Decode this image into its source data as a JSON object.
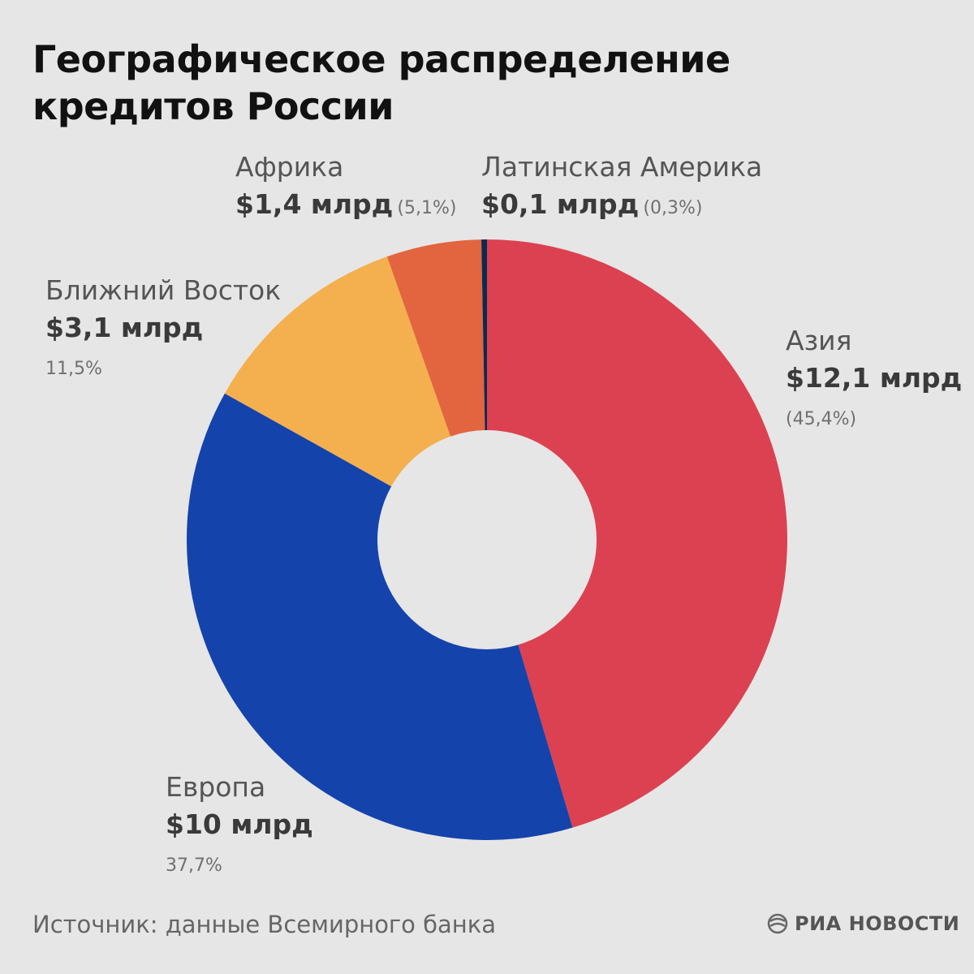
{
  "title": "Географическое распределение кредитов России",
  "source": "Источник: данные Всемирного банка",
  "logo_text": "РИА НОВОСТИ",
  "chart_data": {
    "type": "pie",
    "variant": "donut",
    "title": "Географическое распределение кредитов России",
    "unit": "$ млрд",
    "slices": [
      {
        "key": "asia",
        "name": "Азия",
        "value": 12.1,
        "value_label": "$12,1 млрд",
        "percent": 45.4,
        "percent_label": "(45,4%)",
        "color": "#dc4151"
      },
      {
        "key": "europe",
        "name": "Европа",
        "value": 10,
        "value_label": "$10 млрд",
        "percent": 37.7,
        "percent_label": "37,7%",
        "color": "#1443ac"
      },
      {
        "key": "middle_east",
        "name": "Ближний Восток",
        "value": 3.1,
        "value_label": "$3,1 млрд",
        "percent": 11.5,
        "percent_label": "11,5%",
        "color": "#f4b04f"
      },
      {
        "key": "africa",
        "name": "Африка",
        "value": 1.4,
        "value_label": "$1,4 млрд",
        "percent": 5.1,
        "percent_label": "(5,1%)",
        "color": "#e2653f"
      },
      {
        "key": "latam",
        "name": "Латинская Америка",
        "value": 0.1,
        "value_label": "$0,1 млрд",
        "percent": 0.3,
        "percent_label": "(0,3%)",
        "color": "#0d2a4e"
      }
    ]
  }
}
